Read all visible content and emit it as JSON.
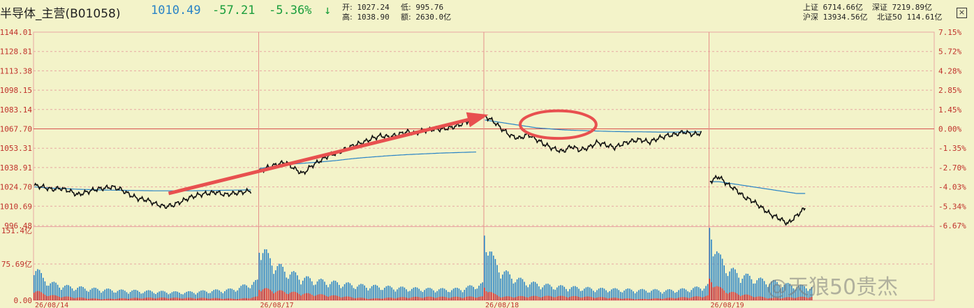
{
  "header": {
    "title": "半导体_主营(B01058)",
    "price": "1010.49",
    "change": "-57.21",
    "change_pct": "-5.36%",
    "arrow": "↓",
    "open_label": "开:",
    "open": "1027.24",
    "low_label": "低:",
    "low": "995.76",
    "high_label": "高:",
    "high": "1038.90",
    "amount_label": "额:",
    "amount": "2630.0亿",
    "sh_label": "上证",
    "sh": "6714.66亿",
    "sz_label": "深证",
    "sz": "7219.89亿",
    "hs_label": "沪深",
    "hs": "13934.56亿",
    "bz_label": "北证50",
    "bz": "114.61亿",
    "close": "×"
  },
  "watermark": "@天狼50贵杰",
  "chart_data": {
    "type": "line",
    "price_axis": {
      "ticks": [
        "1144.01",
        "1128.81",
        "1113.38",
        "1098.15",
        "1083.14",
        "1067.70",
        "1053.31",
        "1038.91",
        "1024.70",
        "1010.69",
        "996.48"
      ],
      "pct_ticks": [
        "7.15%",
        "5.72%",
        "4.28%",
        "2.85%",
        "1.45%",
        "0.00%",
        "-1.35%",
        "-2.70%",
        "-4.03%",
        "-5.34%",
        "-6.67%"
      ],
      "ylim": [
        996.48,
        1144.01
      ],
      "base": 1067.7
    },
    "volume_axis": {
      "ticks": [
        "151.4亿",
        "75.69亿",
        "0.00"
      ],
      "ylim": [
        0,
        151.4
      ]
    },
    "days": [
      "26/08/14",
      "26/08/17",
      "26/08/18",
      "26/08/19"
    ],
    "series": [
      {
        "day": "26/08/14",
        "price": [
          1027,
          1026,
          1024,
          1025,
          1023,
          1020,
          1022,
          1024,
          1025,
          1026,
          1024,
          1020,
          1017,
          1016,
          1013,
          1011,
          1012,
          1015,
          1018,
          1020,
          1021,
          1022,
          1020,
          1021,
          1022,
          1023
        ],
        "avg": [
          1026,
          1025.5,
          1025,
          1024.8,
          1024.5,
          1024.2,
          1024,
          1023.8,
          1023.6,
          1023.5,
          1023.4,
          1023.3,
          1023.2,
          1023.1,
          1023,
          1023,
          1023,
          1023,
          1023,
          1023.1,
          1023.2,
          1023.3,
          1023.4,
          1023.5,
          1023.6,
          1023.7
        ],
        "volume": [
          70,
          40,
          32,
          28,
          25,
          24,
          22,
          21,
          20,
          19,
          18,
          18,
          17,
          17,
          16,
          16,
          15,
          15,
          16,
          17,
          18,
          19,
          20,
          24,
          30,
          35
        ]
      },
      {
        "day": "26/08/17",
        "price": [
          1038,
          1041,
          1043,
          1045,
          1040,
          1036,
          1042,
          1046,
          1050,
          1052,
          1055,
          1058,
          1060,
          1063,
          1065,
          1064,
          1066,
          1068,
          1067,
          1069,
          1070,
          1070,
          1071,
          1073,
          1076,
          1079
        ],
        "avg": [
          1040,
          1041,
          1042,
          1043,
          1043.5,
          1044,
          1044.5,
          1045,
          1045.6,
          1046.2,
          1047,
          1047.7,
          1048.3,
          1048.8,
          1049.3,
          1049.8,
          1050.2,
          1050.6,
          1050.9,
          1051.2,
          1051.5,
          1051.8,
          1052,
          1052.2,
          1052.4,
          1052.6
        ],
        "volume": [
          110,
          80,
          65,
          55,
          48,
          42,
          38,
          36,
          34,
          32,
          30,
          28,
          27,
          26,
          25,
          24,
          23,
          22,
          22,
          21,
          21,
          20,
          21,
          23,
          27,
          30
        ]
      },
      {
        "day": "26/08/18",
        "price": [
          1080,
          1076,
          1070,
          1065,
          1063,
          1066,
          1062,
          1058,
          1055,
          1053,
          1057,
          1054,
          1056,
          1060,
          1058,
          1056,
          1059,
          1061,
          1062,
          1060,
          1063,
          1065,
          1066,
          1068,
          1066,
          1067
        ],
        "avg": [
          1077,
          1076,
          1075,
          1074,
          1073,
          1072,
          1071,
          1070.5,
          1070,
          1069.5,
          1069.2,
          1069,
          1068.8,
          1068.6,
          1068.4,
          1068.2,
          1068.1,
          1068,
          1068,
          1067.9,
          1067.8,
          1067.8,
          1067.8,
          1067.9,
          1067.9,
          1068
        ],
        "volume": [
          130,
          75,
          55,
          45,
          38,
          33,
          30,
          28,
          26,
          25,
          24,
          23,
          22,
          21,
          21,
          20,
          20,
          19,
          19,
          19,
          18,
          19,
          20,
          21,
          24,
          28
        ]
      },
      {
        "day": "26/08/19",
        "price": [
          1030,
          1034,
          1028,
          1024,
          1018,
          1015,
          1010,
          1005,
          1002,
          998,
          1004,
          1010
        ],
        "avg": [
          1030,
          1030,
          1029,
          1028,
          1027,
          1026,
          1025,
          1024,
          1023,
          1022,
          1021,
          1021
        ],
        "volume": [
          140,
          80,
          60,
          50,
          45,
          40,
          36,
          34,
          30,
          28,
          26,
          25
        ]
      }
    ],
    "annotations": [
      {
        "type": "arrow",
        "from": [
          "26/08/14",
          0.6,
          1021
        ],
        "to": [
          "26/08/18",
          0.02,
          1081
        ]
      },
      {
        "type": "ellipse",
        "day": "26/08/18",
        "center": [
          0.33,
          1073.5
        ],
        "rx": 0.17,
        "ry": 10.5
      }
    ],
    "grid": true,
    "colors": {
      "background": "#f3f3c9",
      "price": "#111111",
      "avg": "#2a84c6",
      "axis_text": "#c0312b",
      "vol_blue": "#2a84c6",
      "vol_red": "#d62828",
      "annotation": "#e8504f",
      "grid": "#e8a7a2"
    }
  }
}
